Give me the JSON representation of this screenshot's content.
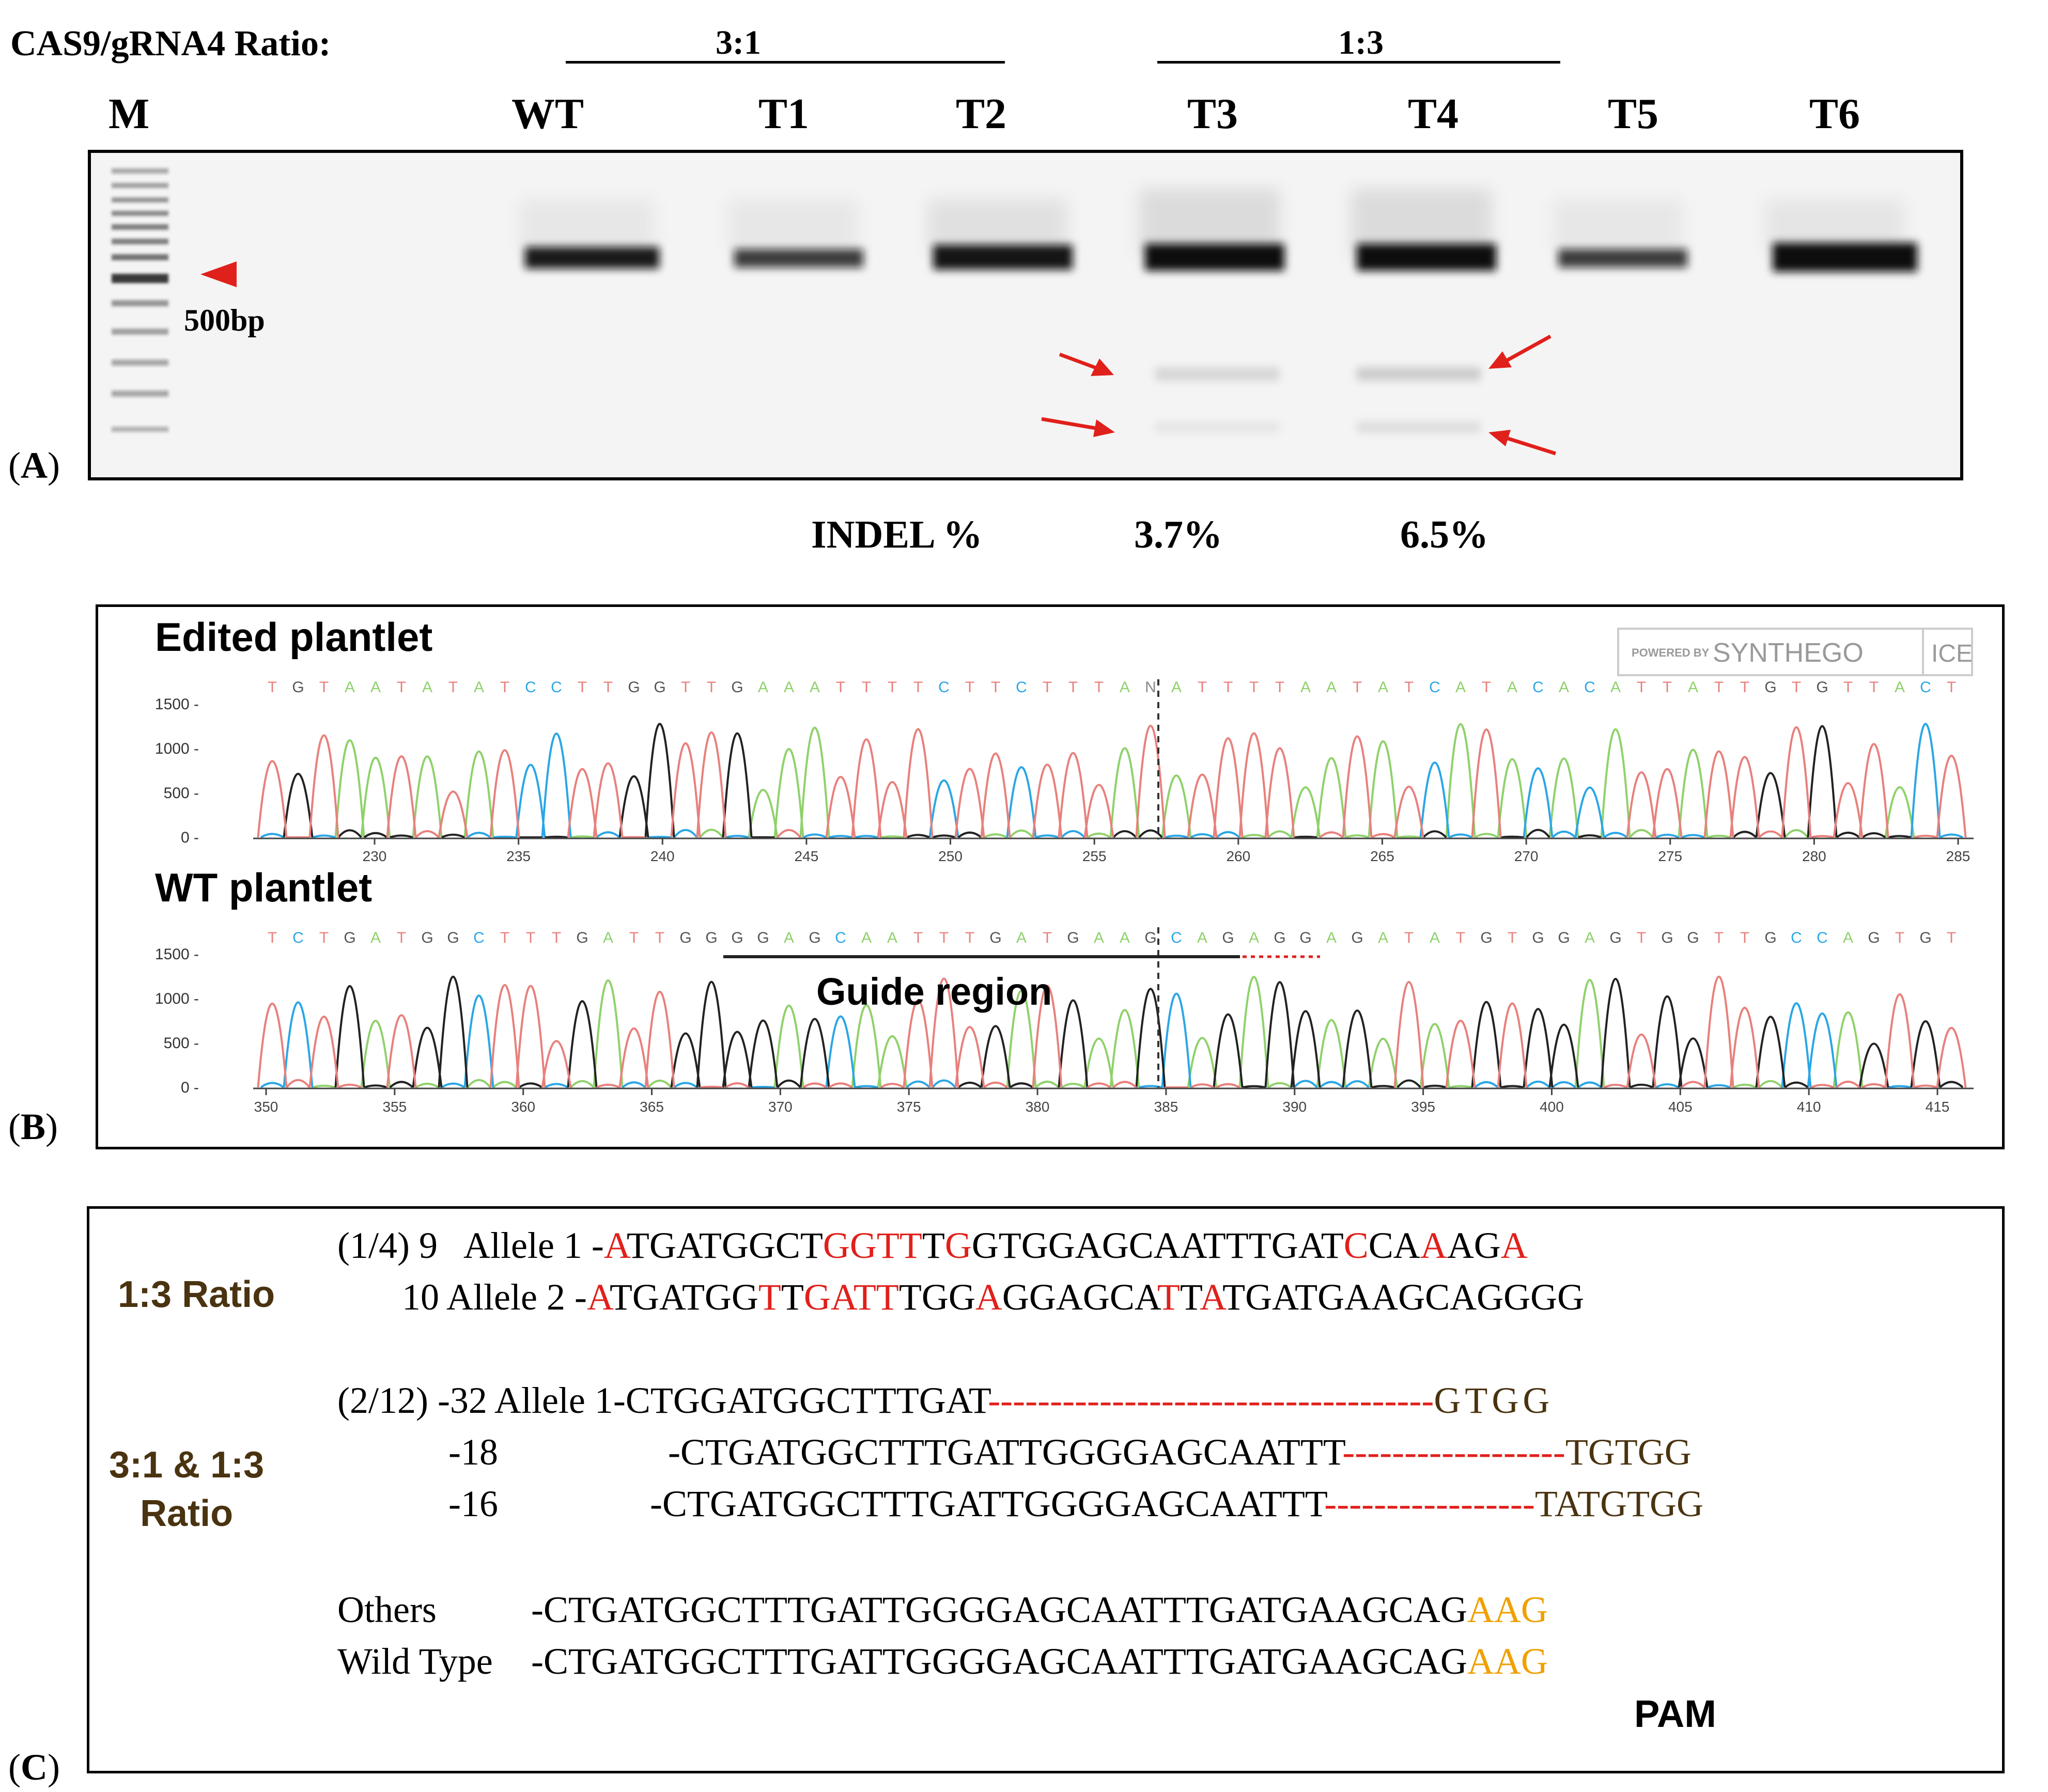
{
  "panel_a": {
    "ratio_label": "CAS9/gRNA4 Ratio:",
    "group_3_1": "3:1",
    "group_1_3": "1:3",
    "lanes": [
      "M",
      "WT",
      "T1",
      "T2",
      "T3",
      "T4",
      "T5",
      "T6"
    ],
    "marker_label": "500bp",
    "letter_open": "(",
    "letter": "A",
    "letter_close": ")",
    "indel_label": "INDEL %",
    "indel_t3": "3.7%",
    "indel_t4": "6.5%"
  },
  "panel_b": {
    "letter": "B",
    "edited_title": "Edited plantlet",
    "wt_title": "WT plantlet",
    "logo_powered": "POWERED BY",
    "logo_name": "SYNTHEGO",
    "logo_ice": "ICE",
    "guide_label": "Guide region",
    "y_ticks": [
      "1500",
      "1000",
      "500",
      "0"
    ],
    "edited_seq": "TGTAATATATCCTTGGTTGAAATTTTCTTCTTTANATTTTAATATCATACACATTATTGTGTTACT",
    "wt_seq": "TCTGATGGCTTTGATTGGGGAGCAATTTGATGAAGCAGAGGAGATATGTGGAGTGGTTGCCAGTGT",
    "edited_x_ticks": [
      "230",
      "235",
      "240",
      "245",
      "250",
      "255",
      "260",
      "265",
      "270",
      "275",
      "280",
      "285"
    ],
    "wt_x_ticks": [
      "350",
      "355",
      "360",
      "365",
      "370",
      "375",
      "380",
      "385",
      "390",
      "395",
      "400",
      "405",
      "410",
      "415"
    ],
    "trace_colors": {
      "A": "#8fd16b",
      "C": "#2aa6e6",
      "G": "#222222",
      "T": "#e8807c"
    }
  },
  "panel_c": {
    "letter": "C",
    "ratio_1_3": "1:3 Ratio",
    "ratio_both_line1": "3:1 & 1:3",
    "ratio_both_line2": "Ratio",
    "pam_label": "PAM",
    "row1_prefix": "(1/4) 9   Allele 1 -",
    "row2_prefix": "10 Allele 2 -",
    "row3_prefix": "(2/12) -32 Allele 1-",
    "row3_seq": "CTGGATGGCTTTGAT",
    "row3_dash": "------------------------------------",
    "row3_tail": "GTGG",
    "row4_num": "-18",
    "row4_seq": "-CTGATGGCTTTGATTGGGGAGCAATTT",
    "row4_dash": "------------------",
    "row4_tail": "TGTGG",
    "row5_num": "-16",
    "row5_seq": "-CTGATGGCTTTGATTGGGGAGCAATTT",
    "row5_dash": "-----------------",
    "row5_tail": "TATGTGG",
    "others_label": "Others",
    "others_seq": "-CTGATGGCTTTGATTGGGGAGCAATTTGATGAAGCAG",
    "others_pam": "AAG",
    "wt_label": "Wild Type",
    "wt_seq": "-CTGATGGCTTTGATTGGGGAGCAATTTGATGAAGCAG",
    "wt_pam": "AAG",
    "allele1_parts": [
      {
        "t": "A",
        "r": true
      },
      {
        "t": "TGATGGCT",
        "r": false
      },
      {
        "t": "GGTT",
        "r": true
      },
      {
        "t": "T",
        "r": false
      },
      {
        "t": "G",
        "r": true
      },
      {
        "t": "GTGGAGCAATTTGAT",
        "r": false
      },
      {
        "t": "C",
        "r": true
      },
      {
        "t": "CA",
        "r": false
      },
      {
        "t": "A",
        "r": true
      },
      {
        "t": "AG",
        "r": false
      },
      {
        "t": "A",
        "r": true
      }
    ],
    "allele2_parts": [
      {
        "t": "A",
        "r": true
      },
      {
        "t": "TGATGG",
        "r": false
      },
      {
        "t": "T",
        "r": true
      },
      {
        "t": "T",
        "r": false
      },
      {
        "t": "GATT",
        "r": true
      },
      {
        "t": "TG",
        "r": false
      },
      {
        "t": "G",
        "r": false
      },
      {
        "t": "A",
        "r": true
      },
      {
        "t": "GGAGCA",
        "r": false
      },
      {
        "t": "T",
        "r": true
      },
      {
        "t": "T",
        "r": false
      },
      {
        "t": "A",
        "r": true
      },
      {
        "t": "TGATGAAGCAGGGG",
        "r": false
      }
    ]
  }
}
